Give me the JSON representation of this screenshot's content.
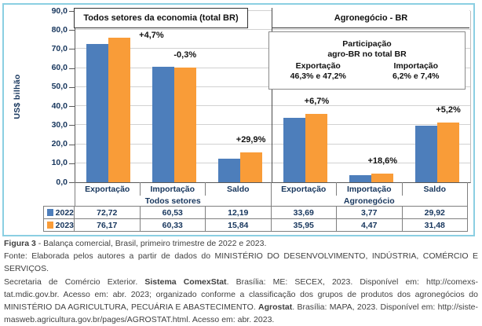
{
  "chart_data": {
    "type": "bar",
    "title": "Balança comercial, Brasil, primeiro trimestre de 2022 e 2023",
    "ylabel": "US$ bilhão",
    "ylim": [
      0,
      90
    ],
    "ytick_step": 10,
    "ytick_labels": [
      "90,0",
      "80,0",
      "70,0",
      "60,0",
      "50,0",
      "40,0",
      "30,0",
      "20,0",
      "10,0",
      "0,0"
    ],
    "grid": "horizontal",
    "sections": [
      {
        "title": "Todos setores da economia (total BR)",
        "group_label": "Todos setores",
        "categories": [
          "Exportação",
          "Importação",
          "Saldo"
        ]
      },
      {
        "title": "Agronegócio - BR",
        "group_label": "Agronegócio",
        "categories": [
          "Exportação",
          "Importação",
          "Saldo"
        ]
      }
    ],
    "categories": [
      "Exportação",
      "Importação",
      "Saldo",
      "Exportação",
      "Importação",
      "Saldo"
    ],
    "series": [
      {
        "name": "2022",
        "color": "#4D7EBB",
        "values": [
          72.72,
          60.53,
          12.19,
          33.69,
          3.77,
          29.92
        ],
        "display": [
          "72,72",
          "60,53",
          "12,19",
          "33,69",
          "3,77",
          "29,92"
        ]
      },
      {
        "name": "2023",
        "color": "#F99C38",
        "values": [
          76.17,
          60.33,
          15.84,
          35.95,
          4.47,
          31.48
        ],
        "display": [
          "76,17",
          "60,33",
          "15,84",
          "35,95",
          "4,47",
          "31,48"
        ]
      }
    ],
    "pct_labels": [
      "+4,7%",
      "-0,3%",
      "+29,9%",
      "+6,7%",
      "+18,6%",
      "+5,2%"
    ],
    "participation": {
      "title1": "Participação",
      "title2": "agro-BR no total BR",
      "export_label": "Exportação",
      "export_values": "46,3% e 47,2%",
      "import_label": "Importação",
      "import_values": "6,2% e 7,4%"
    }
  },
  "caption": {
    "lines": [
      [
        {
          "t": "Figura 3",
          "b": true
        },
        {
          "t": " - Balança comercial, Brasil, primeiro trimestre de 2022 e 2023.",
          "b": false
        }
      ],
      [
        {
          "t": "Fonte: Elaborada pelos autores a partir de dados do MINISTÉRIO DO DESENVOLVIMENTO, INDÚSTRIA, COMÉRCIO E SERVIÇOS.",
          "b": false
        }
      ],
      [
        {
          "t": "Secretaria de Comércio Exterior. ",
          "b": false
        },
        {
          "t": "Sistema ComexStat",
          "b": true
        },
        {
          "t": ". Brasília: ME: SECEX, 2023. Disponível em: http://comexs-",
          "b": false
        }
      ],
      [
        {
          "t": "tat.mdic.gov.br. Acesso em: abr. 2023; organizado conforme a classificação dos grupos de produtos dos agronegócios do",
          "b": false
        }
      ],
      [
        {
          "t": "MINISTÉRIO DA AGRICULTURA, PECUÁRIA E ABASTECIMENTO. ",
          "b": false
        },
        {
          "t": "Agrostat",
          "b": true
        },
        {
          "t": ". Brasília: MAPA, 2023. Disponível em: http://siste-",
          "b": false
        }
      ],
      [
        {
          "t": "masweb.agricultura.gov.br/pages/AGROSTAT.html. Acesso em: abr. 2023.",
          "b": false
        }
      ]
    ]
  }
}
